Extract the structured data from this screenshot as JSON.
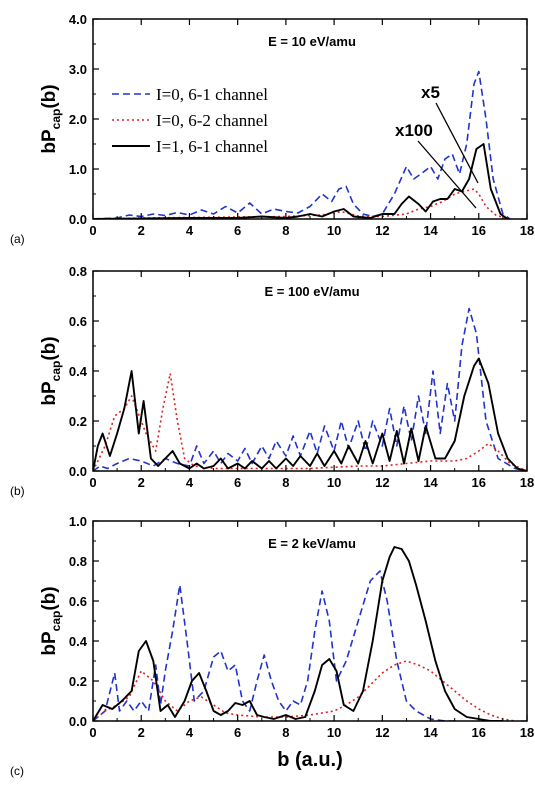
{
  "figure": {
    "xlabel": "b (a.u.)",
    "ylabel_main": "bP",
    "ylabel_sub": "cap",
    "ylabel_tail": "(b)"
  },
  "legend": {
    "entries": [
      {
        "label": "I=0, 6-1 channel",
        "color": "#2233cc",
        "dash": "7,4"
      },
      {
        "label": "I=0, 6-2 channel",
        "color": "#dd2222",
        "dash": "2,3"
      },
      {
        "label": "I=1, 6-1 channel",
        "color": "#000000",
        "dash": ""
      }
    ]
  },
  "chart_data": [
    {
      "type": "line",
      "panel_label": "(a)",
      "title": "E = 10 eV/amu",
      "xlim": [
        0,
        18
      ],
      "ylim": [
        0,
        4.0
      ],
      "xticks": [
        "0",
        "2",
        "4",
        "6",
        "8",
        "10",
        "12",
        "14",
        "16",
        "18"
      ],
      "yticks": [
        "0.0",
        "1.0",
        "2.0",
        "3.0",
        "4.0"
      ],
      "annotations": [
        "x5",
        "x100"
      ],
      "series": [
        {
          "name": "I=0, 6-1 channel",
          "color": "#2233cc",
          "dash": "7,4",
          "x": [
            0,
            1.0,
            1.5,
            2.0,
            2.5,
            3.0,
            3.5,
            4.0,
            4.5,
            5.0,
            5.5,
            6.0,
            6.5,
            7.0,
            7.5,
            8.0,
            8.5,
            9.0,
            9.5,
            9.9,
            10.2,
            10.5,
            10.8,
            11.2,
            11.6,
            12.0,
            12.5,
            13.0,
            13.3,
            13.6,
            14.0,
            14.3,
            14.6,
            14.9,
            15.2,
            15.5,
            15.8,
            16.0,
            16.3,
            16.6,
            17.0,
            17.3
          ],
          "y": [
            0,
            0.02,
            0.08,
            0.05,
            0.1,
            0.07,
            0.13,
            0.08,
            0.18,
            0.1,
            0.25,
            0.12,
            0.32,
            0.1,
            0.2,
            0.15,
            0.12,
            0.25,
            0.5,
            0.35,
            0.6,
            0.65,
            0.3,
            0.1,
            0.05,
            0.1,
            0.5,
            1.05,
            0.8,
            0.9,
            1.05,
            0.8,
            1.2,
            1.3,
            0.9,
            1.5,
            2.7,
            2.95,
            2.0,
            0.8,
            0.1,
            0
          ]
        },
        {
          "name": "I=0, 6-2 channel",
          "color": "#dd2222",
          "dash": "2,3",
          "x": [
            0,
            2,
            4,
            6,
            8,
            9.5,
            10.3,
            11,
            12,
            13,
            13.5,
            14,
            14.5,
            15,
            15.4,
            15.8,
            16.0,
            16.3,
            16.7,
            17.2
          ],
          "y": [
            0,
            0.02,
            0.03,
            0.04,
            0.05,
            0.08,
            0.15,
            0.06,
            0.05,
            0.1,
            0.2,
            0.25,
            0.35,
            0.5,
            0.55,
            0.6,
            0.5,
            0.25,
            0.08,
            0
          ]
        },
        {
          "name": "I=1, 6-1 channel",
          "color": "#000000",
          "dash": "",
          "x": [
            0,
            2,
            4,
            6,
            7,
            8,
            8.5,
            9.0,
            9.5,
            10.0,
            10.4,
            10.8,
            11.5,
            12.0,
            12.5,
            12.8,
            13.1,
            13.5,
            13.8,
            14.1,
            14.4,
            14.7,
            15.0,
            15.3,
            15.6,
            15.9,
            16.2,
            16.5,
            16.9,
            17.2
          ],
          "y": [
            0,
            0.01,
            0.02,
            0.02,
            0.05,
            0.02,
            0.05,
            0.1,
            0.05,
            0.15,
            0.2,
            0.05,
            0.02,
            0.1,
            0.1,
            0.3,
            0.45,
            0.3,
            0.15,
            0.35,
            0.4,
            0.4,
            0.6,
            0.55,
            0.8,
            1.4,
            1.5,
            0.6,
            0.1,
            0
          ]
        }
      ]
    },
    {
      "type": "line",
      "panel_label": "(b)",
      "title": "E = 100 eV/amu",
      "xlim": [
        0,
        18
      ],
      "ylim": [
        0,
        0.8
      ],
      "xticks": [
        "0",
        "2",
        "4",
        "6",
        "8",
        "10",
        "12",
        "14",
        "16",
        "18"
      ],
      "yticks": [
        "0.0",
        "0.2",
        "0.4",
        "0.6",
        "0.8"
      ],
      "series": [
        {
          "name": "I=0, 6-1 channel",
          "color": "#2233cc",
          "dash": "7,4",
          "x": [
            0,
            0.3,
            0.6,
            1.0,
            1.5,
            2.0,
            2.5,
            3.0,
            3.5,
            4.0,
            4.3,
            4.6,
            5.0,
            5.3,
            5.6,
            6.0,
            6.3,
            6.6,
            7.0,
            7.3,
            7.6,
            8.0,
            8.3,
            8.6,
            9.0,
            9.3,
            9.6,
            10.0,
            10.3,
            10.6,
            11.0,
            11.3,
            11.6,
            12.0,
            12.3,
            12.6,
            12.9,
            13.2,
            13.5,
            13.8,
            14.1,
            14.4,
            14.7,
            15.0,
            15.3,
            15.6,
            15.9,
            16.3,
            16.8,
            17.5,
            18
          ],
          "y": [
            0,
            0.02,
            0.01,
            0.03,
            0.05,
            0.04,
            0.02,
            0.05,
            0.03,
            0.02,
            0.1,
            0.03,
            0.08,
            0.03,
            0.07,
            0.04,
            0.09,
            0.03,
            0.1,
            0.05,
            0.12,
            0.06,
            0.14,
            0.06,
            0.16,
            0.07,
            0.18,
            0.08,
            0.2,
            0.09,
            0.2,
            0.08,
            0.2,
            0.1,
            0.25,
            0.1,
            0.26,
            0.12,
            0.3,
            0.15,
            0.4,
            0.15,
            0.35,
            0.2,
            0.5,
            0.65,
            0.55,
            0.2,
            0.05,
            0.01,
            0
          ]
        },
        {
          "name": "I=0, 6-2 channel",
          "color": "#dd2222",
          "dash": "2,3",
          "x": [
            0,
            0.5,
            0.9,
            1.3,
            1.6,
            1.8,
            2.2,
            2.6,
            2.9,
            3.2,
            3.5,
            3.8,
            4.2,
            5,
            7,
            9,
            11,
            12,
            13,
            14,
            15,
            15.5,
            16,
            16.4,
            16.8,
            17.3,
            18
          ],
          "y": [
            0,
            0.1,
            0.22,
            0.25,
            0.3,
            0.25,
            0.15,
            0.08,
            0.25,
            0.39,
            0.2,
            0.05,
            0.02,
            0.01,
            0.01,
            0.01,
            0.02,
            0.02,
            0.03,
            0.04,
            0.04,
            0.05,
            0.08,
            0.11,
            0.08,
            0.03,
            0
          ]
        },
        {
          "name": "I=1, 6-1 channel",
          "color": "#000000",
          "dash": "",
          "x": [
            0,
            0.2,
            0.4,
            0.7,
            1.0,
            1.3,
            1.6,
            1.9,
            2.1,
            2.4,
            2.7,
            3.0,
            3.3,
            3.6,
            4.0,
            4.3,
            4.6,
            5.0,
            5.3,
            5.6,
            6.0,
            6.3,
            6.6,
            7.0,
            7.3,
            7.6,
            8.0,
            8.3,
            8.6,
            9.0,
            9.3,
            9.6,
            10.0,
            10.3,
            10.6,
            11.0,
            11.3,
            11.6,
            12.0,
            12.3,
            12.6,
            12.9,
            13.2,
            13.5,
            13.8,
            14.2,
            14.6,
            15.0,
            15.4,
            15.8,
            16.0,
            16.4,
            16.8,
            17.2,
            17.6,
            18
          ],
          "y": [
            0,
            0.1,
            0.15,
            0.06,
            0.15,
            0.25,
            0.4,
            0.15,
            0.28,
            0.05,
            0.02,
            0.05,
            0.08,
            0.03,
            0.01,
            0.03,
            0.01,
            0.02,
            0.05,
            0.01,
            0.03,
            0.01,
            0.04,
            0.01,
            0.04,
            0.01,
            0.05,
            0.02,
            0.06,
            0.02,
            0.07,
            0.02,
            0.08,
            0.03,
            0.1,
            0.03,
            0.12,
            0.03,
            0.15,
            0.04,
            0.16,
            0.03,
            0.17,
            0.04,
            0.18,
            0.05,
            0.05,
            0.12,
            0.3,
            0.42,
            0.45,
            0.35,
            0.15,
            0.05,
            0.01,
            0
          ]
        }
      ]
    },
    {
      "type": "line",
      "panel_label": "(c)",
      "title": "E = 2 keV/amu",
      "xlim": [
        0,
        18
      ],
      "ylim": [
        0,
        1.0
      ],
      "xticks": [
        "0",
        "2",
        "4",
        "6",
        "8",
        "10",
        "12",
        "14",
        "16",
        "18"
      ],
      "yticks": [
        "0.0",
        "0.2",
        "0.4",
        "0.6",
        "0.8",
        "1.0"
      ],
      "series": [
        {
          "name": "I=0, 6-1 channel",
          "color": "#2233cc",
          "dash": "7,4",
          "x": [
            0,
            0.5,
            0.9,
            1.1,
            1.4,
            1.7,
            2.0,
            2.3,
            2.6,
            2.8,
            3.0,
            3.3,
            3.6,
            3.9,
            4.2,
            4.6,
            5.0,
            5.3,
            5.6,
            5.9,
            6.2,
            6.5,
            6.8,
            7.1,
            7.4,
            7.7,
            8.0,
            8.3,
            8.6,
            8.9,
            9.2,
            9.5,
            9.8,
            10.1,
            10.5,
            11.0,
            11.5,
            11.9,
            12.2,
            12.6,
            13.0,
            13.4,
            14.0,
            14.6,
            15.2
          ],
          "y": [
            0,
            0.05,
            0.24,
            0.05,
            0.1,
            0.05,
            0.1,
            0.05,
            0.28,
            0.08,
            0.25,
            0.45,
            0.68,
            0.4,
            0.1,
            0.15,
            0.32,
            0.35,
            0.25,
            0.28,
            0.1,
            0.05,
            0.2,
            0.33,
            0.2,
            0.1,
            0.05,
            0.1,
            0.08,
            0.2,
            0.45,
            0.65,
            0.5,
            0.2,
            0.3,
            0.5,
            0.7,
            0.75,
            0.6,
            0.3,
            0.1,
            0.05,
            0.01,
            0,
            0
          ]
        },
        {
          "name": "I=0, 6-2 channel",
          "color": "#dd2222",
          "dash": "2,3",
          "x": [
            0,
            0.5,
            1.0,
            1.5,
            2.0,
            2.5,
            3.0,
            3.5,
            4.0,
            4.5,
            5.0,
            5.5,
            6,
            7,
            8,
            9,
            10,
            10.5,
            11,
            11.5,
            12,
            12.5,
            13,
            13.5,
            14,
            14.5,
            15,
            15.5,
            16,
            16.5,
            17,
            17.5
          ],
          "y": [
            0,
            0.05,
            0.08,
            0.12,
            0.25,
            0.2,
            0.1,
            0.05,
            0.1,
            0.12,
            0.08,
            0.04,
            0.03,
            0.02,
            0.02,
            0.03,
            0.05,
            0.08,
            0.12,
            0.18,
            0.24,
            0.28,
            0.3,
            0.28,
            0.25,
            0.2,
            0.15,
            0.1,
            0.06,
            0.03,
            0.01,
            0
          ]
        },
        {
          "name": "I=1, 6-1 channel",
          "color": "#000000",
          "dash": "",
          "x": [
            0,
            0.4,
            0.8,
            1.2,
            1.6,
            1.9,
            2.2,
            2.5,
            2.8,
            3.1,
            3.4,
            3.8,
            4.1,
            4.4,
            4.7,
            5.0,
            5.3,
            5.6,
            5.9,
            6.2,
            6.5,
            6.8,
            7.1,
            7.5,
            8.0,
            8.4,
            8.8,
            9.2,
            9.5,
            9.8,
            10.1,
            10.4,
            10.8,
            11.2,
            11.6,
            12.0,
            12.3,
            12.5,
            12.8,
            13.1,
            13.4,
            13.8,
            14.2,
            14.6,
            15.0,
            15.5,
            16.0,
            16.5,
            17.0
          ],
          "y": [
            0,
            0.08,
            0.06,
            0.1,
            0.15,
            0.35,
            0.4,
            0.3,
            0.05,
            0.08,
            0.02,
            0.1,
            0.2,
            0.24,
            0.15,
            0.05,
            0.03,
            0.05,
            0.09,
            0.08,
            0.1,
            0.03,
            0.02,
            0.01,
            0.03,
            0.01,
            0.02,
            0.15,
            0.28,
            0.31,
            0.25,
            0.08,
            0.05,
            0.15,
            0.4,
            0.7,
            0.82,
            0.87,
            0.86,
            0.8,
            0.68,
            0.5,
            0.3,
            0.15,
            0.06,
            0.02,
            0.01,
            0,
            0
          ]
        }
      ]
    }
  ]
}
